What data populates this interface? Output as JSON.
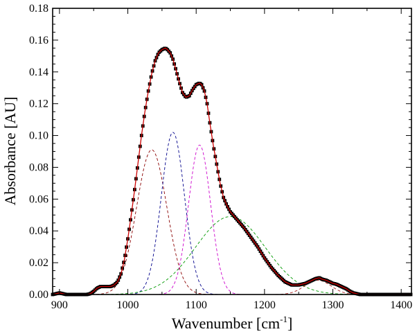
{
  "chart_data": {
    "type": "line",
    "xlabel": "Wavenumber [cm",
    "xlabel_sup": "-1",
    "xlabel_end": "]",
    "ylabel": "Absorbance [AU]",
    "xlim": [
      890,
      1415
    ],
    "ylim": [
      0,
      0.18
    ],
    "x_ticks": [
      900,
      1000,
      1100,
      1200,
      1300,
      1400
    ],
    "x_tick_labels": [
      "900",
      "1000",
      "1100",
      "1200",
      "1300",
      "1400"
    ],
    "y_ticks": [
      0,
      0.02,
      0.04,
      0.06,
      0.08,
      0.1,
      0.12,
      0.14,
      0.16,
      0.18
    ],
    "y_tick_labels": [
      "0.00",
      "0.02",
      "0.04",
      "0.06",
      "0.08",
      "0.10",
      "0.12",
      "0.14",
      "0.16",
      "0.18"
    ],
    "grid": false,
    "colors": {
      "measured": "#000000",
      "fit": "#cc0000",
      "c1": "#8b0000",
      "c2": "#00008b",
      "c3": "#cc00cc",
      "c4": "#009900",
      "c5": "#aa2222"
    },
    "measured": {
      "x": [
        890,
        895,
        900,
        905,
        910,
        915,
        920,
        925,
        930,
        935,
        940,
        945,
        950,
        955,
        960,
        965,
        970,
        975,
        980,
        985,
        990,
        995,
        1000,
        1005,
        1010,
        1015,
        1020,
        1025,
        1030,
        1035,
        1040,
        1045,
        1050,
        1055,
        1058,
        1062,
        1066,
        1070,
        1075,
        1080,
        1085,
        1090,
        1095,
        1100,
        1105,
        1108,
        1112,
        1116,
        1120,
        1125,
        1130,
        1135,
        1140,
        1145,
        1150,
        1160,
        1170,
        1180,
        1190,
        1200,
        1210,
        1220,
        1230,
        1240,
        1245,
        1250,
        1255,
        1260,
        1265,
        1270,
        1275,
        1280,
        1285,
        1290,
        1295,
        1300,
        1305,
        1310,
        1315,
        1320,
        1325,
        1330,
        1335,
        1340,
        1345,
        1350,
        1360,
        1370,
        1380,
        1390,
        1400,
        1410,
        1415
      ],
      "y": [
        0.0,
        0.0005,
        0.001,
        0.0005,
        0.0,
        0.0,
        0.0,
        0.0,
        0.0,
        0.0,
        0.0,
        0.0005,
        0.002,
        0.004,
        0.005,
        0.005,
        0.005,
        0.005,
        0.006,
        0.008,
        0.013,
        0.022,
        0.035,
        0.05,
        0.066,
        0.083,
        0.1,
        0.115,
        0.128,
        0.139,
        0.147,
        0.152,
        0.154,
        0.155,
        0.154,
        0.152,
        0.148,
        0.142,
        0.134,
        0.127,
        0.124,
        0.125,
        0.129,
        0.132,
        0.133,
        0.132,
        0.128,
        0.12,
        0.108,
        0.094,
        0.082,
        0.07,
        0.061,
        0.056,
        0.052,
        0.047,
        0.042,
        0.036,
        0.03,
        0.023,
        0.017,
        0.012,
        0.008,
        0.006,
        0.006,
        0.006,
        0.0065,
        0.007,
        0.008,
        0.009,
        0.01,
        0.0105,
        0.0095,
        0.009,
        0.008,
        0.007,
        0.0065,
        0.0055,
        0.0045,
        0.0035,
        0.002,
        0.001,
        0.0005,
        0.0,
        0.0,
        0.0,
        0.0,
        0.0,
        0.0,
        0.0,
        0.0,
        0.0,
        0.0
      ]
    },
    "components": [
      {
        "key": "c1",
        "center": 1035,
        "height": 0.091,
        "fwhm": 52
      },
      {
        "key": "c2",
        "center": 1066,
        "height": 0.102,
        "fwhm": 40
      },
      {
        "key": "c3",
        "center": 1105,
        "height": 0.094,
        "fwhm": 38
      },
      {
        "key": "c4",
        "center": 1150,
        "height": 0.049,
        "fwhm": 120
      },
      {
        "key": "c5",
        "center": 1278,
        "height": 0.009,
        "fwhm": 45
      }
    ]
  }
}
